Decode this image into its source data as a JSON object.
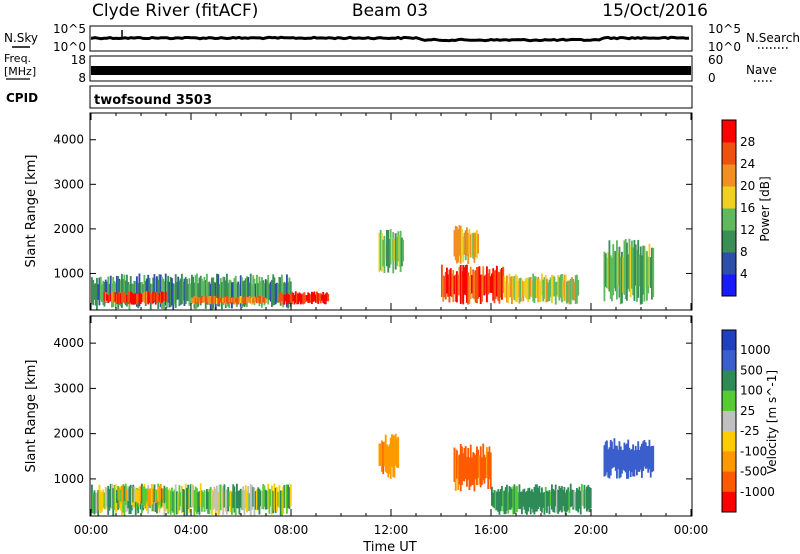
{
  "header": {
    "station": "Clyde River (fitACF)",
    "beam": "Beam 03",
    "date": "15/Oct/2016"
  },
  "strips": {
    "nsky": {
      "label": "N.Sky",
      "ticks": [
        "10^5",
        "10^0"
      ],
      "right_label": "N.Search",
      "right_ticks": [
        "10^5",
        "10^0"
      ]
    },
    "freq": {
      "label_line1": "Freq.",
      "label_line2": "[MHz]",
      "ticks": [
        "18",
        "8"
      ],
      "right_label": "Nave",
      "right_ticks": [
        "60",
        "0"
      ]
    },
    "cpid": {
      "label": "CPID",
      "value": "twofsound 3503"
    }
  },
  "colors": {
    "power": [
      "#1a1aff",
      "#2d4fa8",
      "#3b8f56",
      "#5fba5f",
      "#f0d020",
      "#f09020",
      "#f05010",
      "#ff0000"
    ],
    "velocity": [
      "#ff0000",
      "#ff5a00",
      "#ff9900",
      "#ffcc00",
      "#c0c0c0",
      "#55cc33",
      "#2e8b57",
      "#3a5fcd",
      "#2040c0"
    ]
  },
  "chart_data": [
    {
      "type": "heatmap",
      "title": "Power",
      "xlabel": "",
      "ylabel": "Slant Range [km]",
      "ylim": [
        180,
        4600
      ],
      "yticks": [
        "1000",
        "2000",
        "3000",
        "4000"
      ],
      "xlim": [
        "00:00",
        "24:00"
      ],
      "colorbar": {
        "label": "Power [dB]",
        "ticks": [
          "4",
          "8",
          "12",
          "16",
          "20",
          "24",
          "28"
        ],
        "range": [
          0,
          30
        ]
      },
      "regions": [
        {
          "t0": 0.0,
          "t1": 8.0,
          "r0": 180,
          "r1": 1000,
          "value": 10
        },
        {
          "t0": 0.5,
          "t1": 3.0,
          "r0": 300,
          "r1": 600,
          "value": 26
        },
        {
          "t0": 4.0,
          "t1": 7.0,
          "r0": 300,
          "r1": 500,
          "value": 22
        },
        {
          "t0": 7.5,
          "t1": 9.5,
          "r0": 300,
          "r1": 600,
          "value": 27
        },
        {
          "t0": 11.5,
          "t1": 12.5,
          "r0": 1000,
          "r1": 2000,
          "value": 14
        },
        {
          "t0": 14.0,
          "t1": 16.5,
          "r0": 300,
          "r1": 1200,
          "value": 26
        },
        {
          "t0": 14.5,
          "t1": 15.5,
          "r0": 1200,
          "r1": 2100,
          "value": 18
        },
        {
          "t0": 16.5,
          "t1": 19.5,
          "r0": 300,
          "r1": 1000,
          "value": 16
        },
        {
          "t0": 20.5,
          "t1": 22.5,
          "r0": 300,
          "r1": 1800,
          "value": 12
        }
      ]
    },
    {
      "type": "heatmap",
      "title": "Velocity",
      "xlabel": "Time UT",
      "ylabel": "Slant Range [km]",
      "ylim": [
        180,
        4600
      ],
      "yticks": [
        "1000",
        "2000",
        "3000",
        "4000"
      ],
      "xticks": [
        "00:00",
        "04:00",
        "08:00",
        "12:00",
        "16:00",
        "20:00",
        "00:00"
      ],
      "colorbar": {
        "label": "Velocity [m s^-1]",
        "ticks": [
          "1000",
          "500",
          "100",
          "25",
          "-25",
          "-100",
          "-500",
          "-1000"
        ]
      },
      "regions": [
        {
          "t0": 0.0,
          "t1": 8.0,
          "r0": 180,
          "r1": 900,
          "value": 50
        },
        {
          "t0": 1.0,
          "t1": 3.0,
          "r0": 400,
          "r1": 900,
          "value": 0
        },
        {
          "t0": 11.5,
          "t1": 12.3,
          "r0": 1000,
          "r1": 2000,
          "value": -400
        },
        {
          "t0": 14.5,
          "t1": 16.0,
          "r0": 700,
          "r1": 1800,
          "value": -600
        },
        {
          "t0": 16.0,
          "t1": 20.0,
          "r0": 200,
          "r1": 900,
          "value": 150
        },
        {
          "t0": 20.5,
          "t1": 22.5,
          "r0": 1000,
          "r1": 1900,
          "value": 800
        }
      ]
    }
  ]
}
